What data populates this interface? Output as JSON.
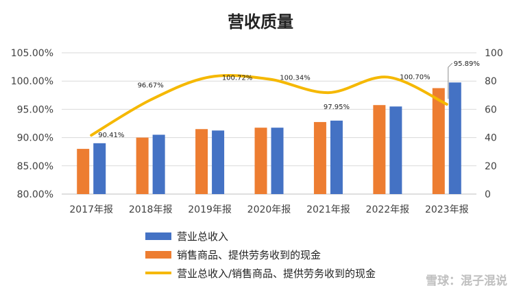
{
  "chart_data": {
    "type": "bar",
    "title": "营收质量",
    "categories": [
      "2017年报",
      "2018年报",
      "2019年报",
      "2020年报",
      "2021年报",
      "2022年报",
      "2023年报"
    ],
    "left_axis": {
      "ylim": [
        0.8,
        1.05
      ],
      "ticks": [
        "80.00%",
        "85.00%",
        "90.00%",
        "95.00%",
        "100.00%",
        "105.00%"
      ]
    },
    "right_axis": {
      "ylim": [
        0,
        100
      ],
      "ticks": [
        "0",
        "20",
        "40",
        "60",
        "80",
        "100"
      ]
    },
    "series": [
      {
        "name": "销售商品、提供劳务收到的现金",
        "type": "bar",
        "axis": "right",
        "color": "#ed7d31",
        "values": [
          32,
          40,
          46,
          47,
          51,
          63,
          75
        ]
      },
      {
        "name": "营业总收入",
        "type": "bar",
        "axis": "right",
        "color": "#4472c4",
        "values": [
          36,
          42,
          45,
          47,
          52,
          62,
          79
        ]
      },
      {
        "name": "营业总收入/销售商品、提供劳务收到的现金",
        "type": "line",
        "axis": "left",
        "color": "#f5b800",
        "values": [
          0.9041,
          0.9667,
          1.0072,
          1.0034,
          0.9795,
          1.007,
          0.9589
        ],
        "labels": [
          "90.41%",
          "96.67%",
          "100.72%",
          "100.34%",
          "97.95%",
          "100.70%",
          "95.89%"
        ]
      }
    ],
    "grid": true,
    "legend": "bottom"
  },
  "watermark": "雪球：混子混说"
}
